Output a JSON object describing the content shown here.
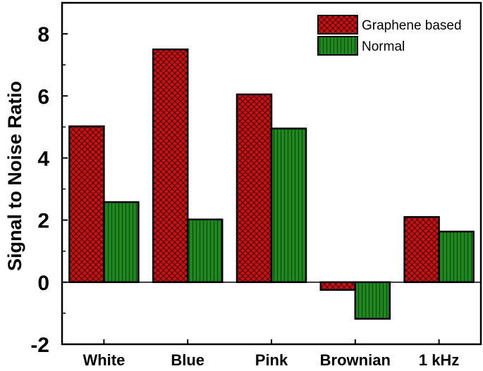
{
  "chart_data": {
    "type": "bar",
    "categories": [
      "White",
      "Blue",
      "Pink",
      "Brownian",
      "1 kHz"
    ],
    "series": [
      {
        "name": "Graphene based",
        "values": [
          5.02,
          7.5,
          6.05,
          -0.25,
          2.1
        ]
      },
      {
        "name": "Normal",
        "values": [
          2.58,
          2.02,
          4.95,
          -1.18,
          1.63
        ]
      }
    ],
    "ylabel": "Signal to Noise Ratio",
    "xlabel": "",
    "ylim": [
      -2,
      9
    ],
    "yticks": [
      -2,
      0,
      2,
      4,
      6,
      8
    ],
    "legend_position": "top-right",
    "colors": {
      "graphene_fill": "#d01010",
      "graphene_hatch": "#3a0000",
      "normal_fill": "#1f8a1f",
      "normal_hatch": "#0b4a0b",
      "axis": "#000000"
    }
  }
}
